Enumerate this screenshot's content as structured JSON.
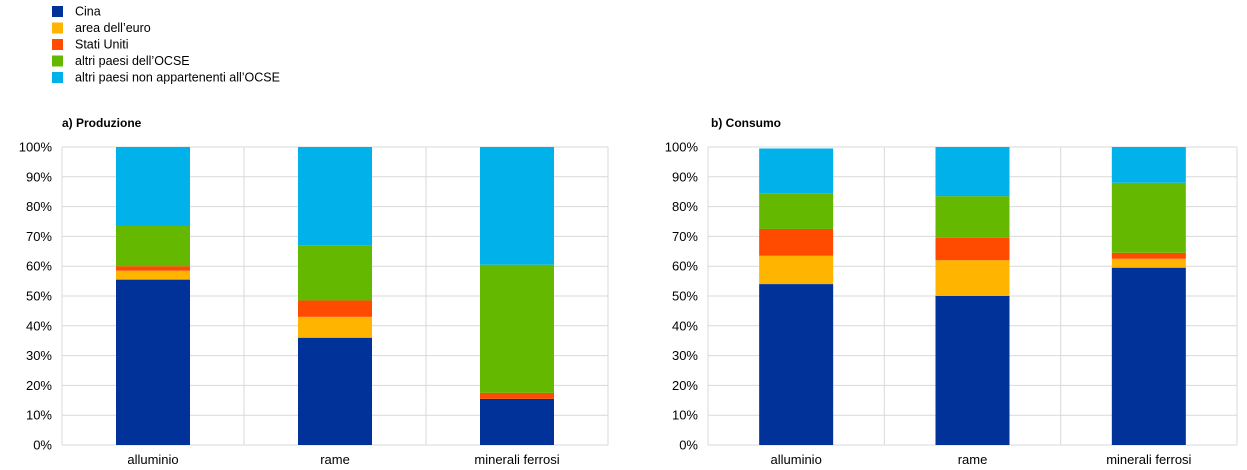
{
  "legend": [
    {
      "label": "Cina",
      "color": "#003299"
    },
    {
      "label": "area dell’euro",
      "color": "#FFB400"
    },
    {
      "label": "Stati Uniti",
      "color": "#FF4B00"
    },
    {
      "label": "altri paesi dell’OCSE",
      "color": "#65B800"
    },
    {
      "label": "altri paesi non appartenenti all’OCSE",
      "color": "#00B1EA"
    }
  ],
  "chart_data": [
    {
      "type": "bar",
      "stacked": true,
      "title": "a) Produzione",
      "categories": [
        "alluminio",
        "rame",
        "minerali ferrosi"
      ],
      "ylim": [
        0,
        100
      ],
      "yticks": [
        "0%",
        "10%",
        "20%",
        "30%",
        "40%",
        "50%",
        "60%",
        "70%",
        "80%",
        "90%",
        "100%"
      ],
      "grid": true,
      "series": [
        {
          "name": "Cina",
          "values": [
            55.5,
            36,
            15.5
          ]
        },
        {
          "name": "area dell’euro",
          "values": [
            3,
            7,
            0
          ]
        },
        {
          "name": "Stati Uniti",
          "values": [
            1.5,
            5.5,
            2
          ]
        },
        {
          "name": "altri paesi dell’OCSE",
          "values": [
            13.5,
            18.5,
            43
          ]
        },
        {
          "name": "altri paesi non appartenenti all’OCSE",
          "values": [
            26.5,
            33,
            39.5
          ]
        }
      ]
    },
    {
      "type": "bar",
      "stacked": true,
      "title": "b) Consumo",
      "categories": [
        "alluminio",
        "rame",
        "minerali ferrosi"
      ],
      "ylim": [
        0,
        100
      ],
      "yticks": [
        "0%",
        "10%",
        "20%",
        "30%",
        "40%",
        "50%",
        "60%",
        "70%",
        "80%",
        "90%",
        "100%"
      ],
      "grid": true,
      "series": [
        {
          "name": "Cina",
          "values": [
            54,
            50,
            59.5
          ]
        },
        {
          "name": "area dell’euro",
          "values": [
            9.5,
            12,
            3
          ]
        },
        {
          "name": "Stati Uniti",
          "values": [
            9,
            7.5,
            2
          ]
        },
        {
          "name": "altri paesi dell’OCSE",
          "values": [
            12,
            14,
            23.5
          ]
        },
        {
          "name": "altri paesi non appartenenti all’OCSE",
          "values": [
            15,
            16.5,
            12
          ]
        }
      ]
    }
  ]
}
